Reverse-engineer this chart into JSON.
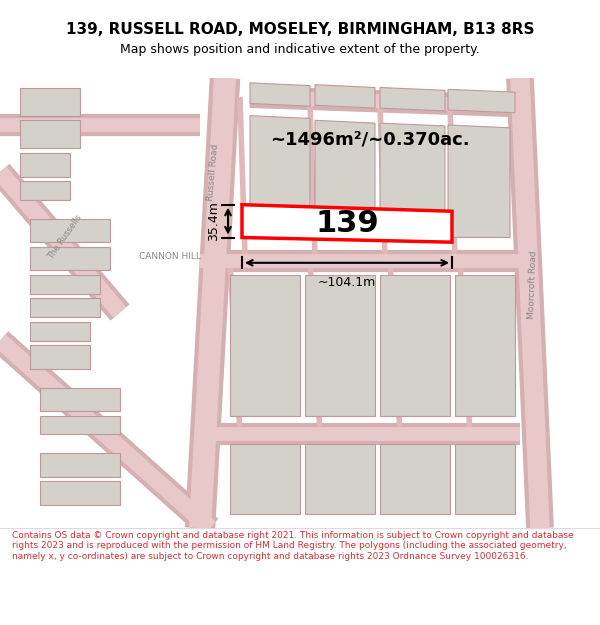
{
  "title_line1": "139, RUSSELL ROAD, MOSELEY, BIRMINGHAM, B13 8RS",
  "title_line2": "Map shows position and indicative extent of the property.",
  "footer_text": "Contains OS data © Crown copyright and database right 2021. This information is subject to Crown copyright and database rights 2023 and is reproduced with the permission of HM Land Registry. The polygons (including the associated geometry, namely x, y co-ordinates) are subject to Crown copyright and database rights 2023 Ordnance Survey 100026316.",
  "bg_color": "#f5f5f0",
  "map_bg": "#f0ede8",
  "road_color": "#e8a0a0",
  "road_fill": "#e8c0c0",
  "building_fill": "#d8d4ce",
  "building_edge": "#c8a0a0",
  "highlight_fill": "#ffffff",
  "highlight_edge": "#ff0000",
  "highlight_lw": 2.5,
  "dim_color": "#000000",
  "annotation_color": "#555555",
  "area_text": "~1496m²/~0.370ac.",
  "width_text": "~104.1m",
  "height_text": "35.4m",
  "property_label": "139"
}
